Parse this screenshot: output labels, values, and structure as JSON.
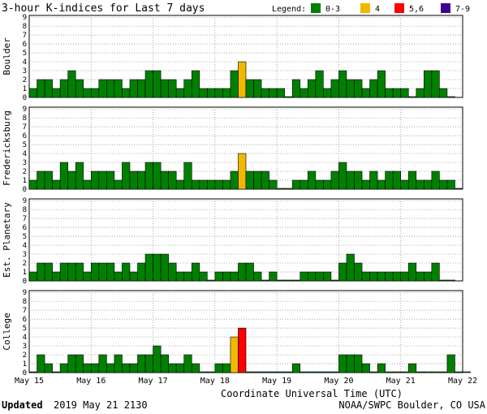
{
  "chart_data": {
    "type": "bar",
    "title": "3-hour K-indices for Last 7 days",
    "legend": {
      "label": "Legend:",
      "placement": "top-right",
      "entries": [
        {
          "label": "0-3",
          "color": "#008000",
          "min": 0,
          "max": 3
        },
        {
          "label": "4",
          "color": "#f0b800",
          "min": 4,
          "max": 4
        },
        {
          "label": "5,6",
          "color": "#ff0000",
          "min": 5,
          "max": 6
        },
        {
          "label": "7-9",
          "color": "#400090",
          "min": 7,
          "max": 9
        }
      ]
    },
    "ylim": [
      0,
      9
    ],
    "yticks": [
      "0",
      "1",
      "2",
      "3",
      "4",
      "5",
      "6",
      "7",
      "8",
      "9"
    ],
    "x_ticks": [
      "May 15",
      "May 16",
      "May 17",
      "May 18",
      "May 19",
      "May 20",
      "May 21",
      "May 22"
    ],
    "xlabel": "Coordinate Universal Time (UTC)",
    "grid": true,
    "panels": [
      {
        "name": "Boulder",
        "values": [
          1,
          2,
          2,
          1,
          2,
          3,
          2,
          1,
          1,
          2,
          2,
          2,
          1,
          2,
          2,
          3,
          3,
          2,
          2,
          1,
          2,
          3,
          1,
          1,
          1,
          1,
          3,
          4,
          2,
          2,
          1,
          1,
          1,
          0,
          2,
          1,
          2,
          3,
          1,
          2,
          3,
          2,
          2,
          1,
          2,
          3,
          1,
          1,
          1,
          0,
          1,
          3,
          3,
          1,
          0
        ]
      },
      {
        "name": "Fredericksburg",
        "values": [
          1,
          2,
          2,
          1,
          3,
          2,
          3,
          1,
          2,
          2,
          2,
          1,
          3,
          2,
          2,
          3,
          3,
          2,
          2,
          1,
          3,
          1,
          1,
          1,
          1,
          1,
          2,
          4,
          2,
          2,
          2,
          1,
          0,
          0,
          1,
          1,
          2,
          1,
          1,
          2,
          3,
          2,
          2,
          1,
          2,
          1,
          2,
          2,
          1,
          2,
          1,
          1,
          2,
          1,
          1,
          0
        ]
      },
      {
        "name": "Est. Planetary",
        "values": [
          1,
          2,
          2,
          1,
          2,
          2,
          2,
          1,
          2,
          2,
          2,
          1,
          2,
          1,
          2,
          3,
          3,
          3,
          2,
          1,
          1,
          2,
          1,
          0,
          1,
          1,
          1,
          2,
          2,
          1,
          0,
          1,
          0,
          0,
          0,
          1,
          1,
          1,
          1,
          0,
          2,
          3,
          2,
          1,
          1,
          1,
          1,
          1,
          1,
          2,
          1,
          1,
          2,
          0,
          0
        ]
      },
      {
        "name": "College",
        "values": [
          0,
          2,
          1,
          0,
          1,
          2,
          2,
          1,
          1,
          2,
          1,
          2,
          1,
          1,
          2,
          2,
          3,
          2,
          1,
          1,
          2,
          1,
          0,
          0,
          1,
          1,
          4,
          5,
          0,
          0,
          0,
          0,
          0,
          0,
          1,
          0,
          0,
          0,
          0,
          0,
          2,
          2,
          2,
          1,
          0,
          1,
          0,
          0,
          0,
          1,
          0,
          0,
          0,
          0,
          2,
          0,
          0
        ]
      }
    ]
  },
  "footer": {
    "updated_label": "Updated",
    "updated_value": "2019 May 21 2130",
    "source": "NOAA/SWPC Boulder, CO USA"
  }
}
